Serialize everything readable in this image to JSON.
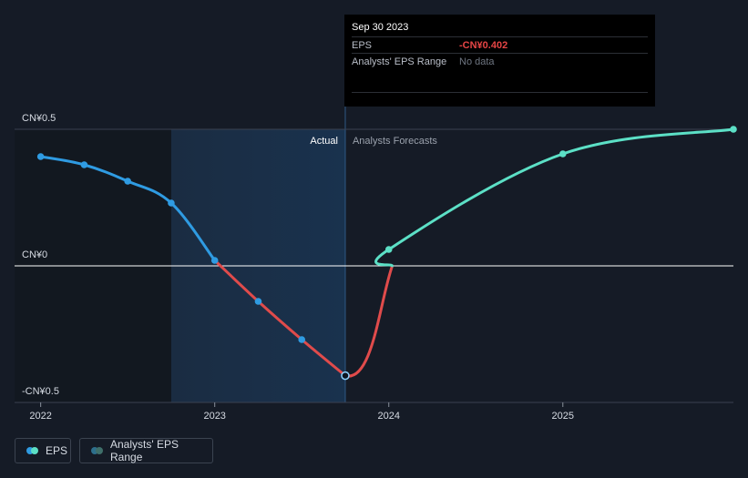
{
  "chart_data": {
    "type": "line",
    "currency_prefix": "CN¥",
    "y_ticks": [
      {
        "label": "CN¥0.5",
        "value": 0.5
      },
      {
        "label": "CN¥0",
        "value": 0
      },
      {
        "label": "-CN¥0.5",
        "value": -0.5
      }
    ],
    "x_ticks": [
      {
        "label": "2022",
        "value": 2022.0
      },
      {
        "label": "2023",
        "value": 2023.0
      },
      {
        "label": "2024",
        "value": 2024.0
      },
      {
        "label": "2025",
        "value": 2025.0
      }
    ],
    "ylim": [
      -0.5,
      0.5
    ],
    "xlim": [
      2021.85,
      2025.98
    ],
    "divider_x": 2023.75,
    "highlight_start_x": 2022.75,
    "section_labels": {
      "actual": "Actual",
      "forecast": "Analysts Forecasts"
    },
    "series": [
      {
        "name": "EPS",
        "kind": "actual",
        "points": [
          {
            "x": 2022.0,
            "y": 0.4
          },
          {
            "x": 2022.25,
            "y": 0.37
          },
          {
            "x": 2022.5,
            "y": 0.31
          },
          {
            "x": 2022.75,
            "y": 0.23
          },
          {
            "x": 2023.0,
            "y": 0.02
          },
          {
            "x": 2023.25,
            "y": -0.13
          },
          {
            "x": 2023.5,
            "y": -0.27
          },
          {
            "x": 2023.75,
            "y": -0.402
          }
        ]
      },
      {
        "name": "EPS",
        "kind": "forecast",
        "points": [
          {
            "x": 2023.75,
            "y": -0.402
          },
          {
            "x": 2024.0,
            "y": 0.06
          },
          {
            "x": 2025.0,
            "y": 0.41
          },
          {
            "x": 2025.98,
            "y": 0.5
          }
        ]
      }
    ],
    "colors": {
      "positive_actual": "#2f9be2",
      "negative_actual": "#e04b4b",
      "forecast": "#5ce0c6",
      "zero_line": "#ffffff",
      "grid": "#3a4150"
    },
    "legend": [
      {
        "label": "EPS",
        "colors": [
          "#2f9be2",
          "#5ce0c6"
        ]
      },
      {
        "label": "Analysts' EPS Range",
        "colors": [
          "#2d6f8c",
          "#3f6f6a"
        ]
      }
    ]
  },
  "tooltip": {
    "date": "Sep 30 2023",
    "rows": [
      {
        "label": "EPS",
        "value": "-CN¥0.402"
      },
      {
        "label": "Analysts' EPS Range",
        "value": "No data"
      }
    ]
  }
}
